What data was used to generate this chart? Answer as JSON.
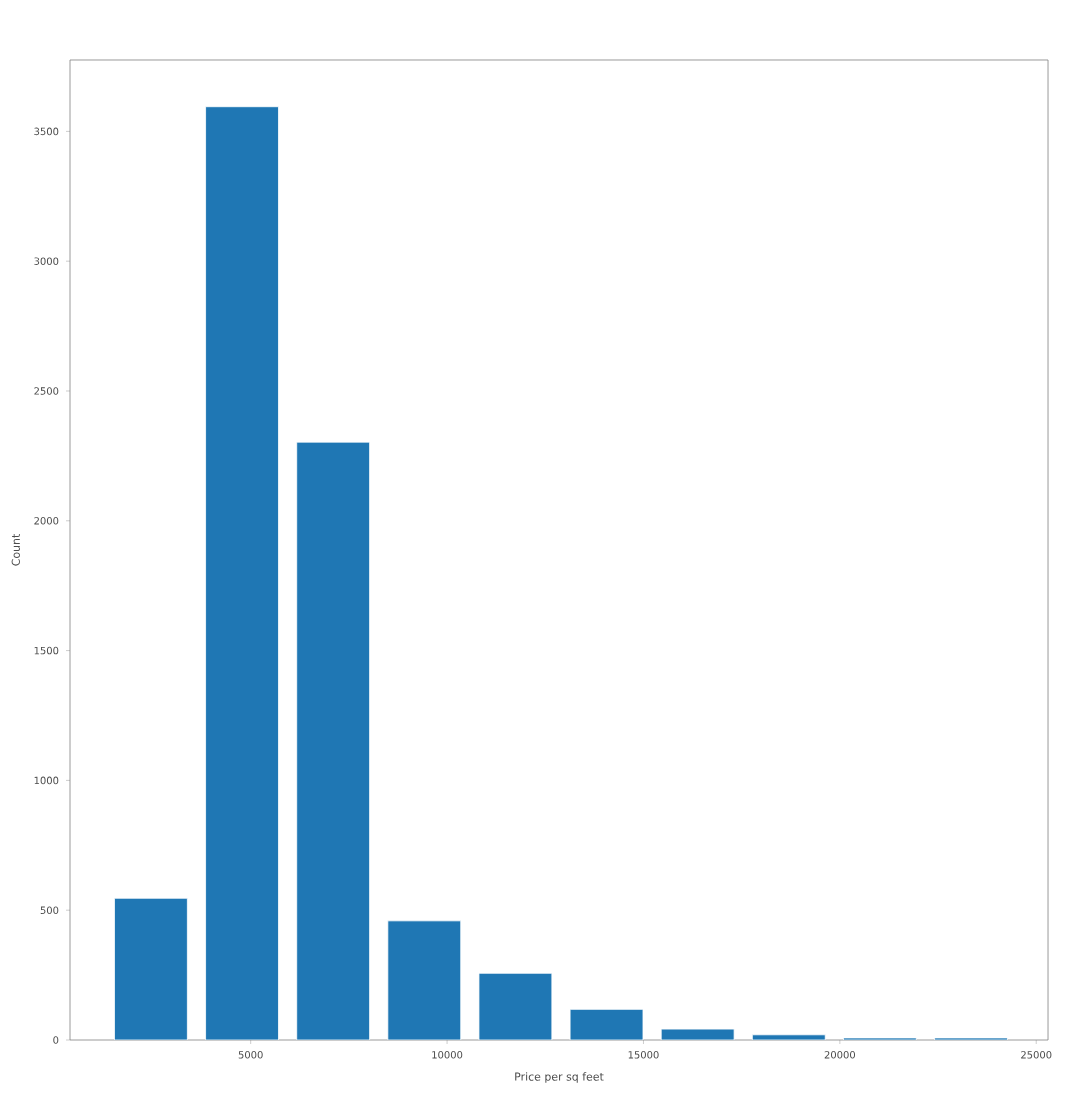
{
  "chart_data": {
    "type": "histogram",
    "xlabel": "Price per sq feet",
    "ylabel": "Count",
    "bins": [
      1300,
      3620,
      5940,
      8260,
      10580,
      12900,
      15220,
      17540,
      19860,
      22180,
      24500
    ],
    "values": [
      546,
      3595,
      2303,
      459,
      257,
      118,
      42,
      20,
      8,
      8
    ],
    "color": "#1f77b4",
    "xlim": [
      400,
      25300
    ],
    "ylim": [
      0,
      3775
    ],
    "xticks": [
      5000,
      10000,
      15000,
      20000,
      25000
    ],
    "yticks": [
      0,
      500,
      1000,
      1500,
      2000,
      2500,
      3000,
      3500
    ],
    "grid": false
  }
}
